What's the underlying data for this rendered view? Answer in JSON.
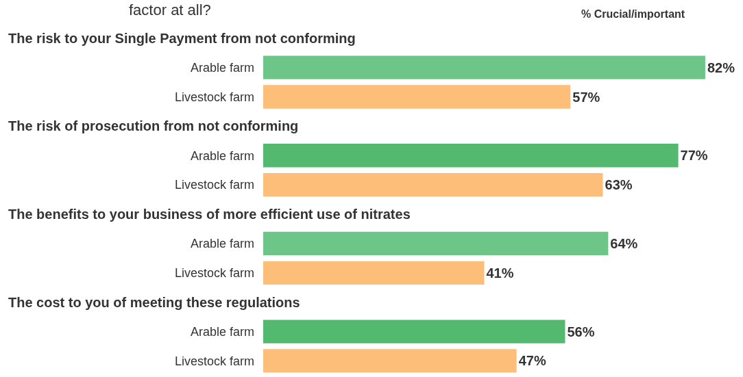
{
  "chart_data": {
    "type": "bar",
    "orientation": "horizontal",
    "title": "factor at all?",
    "subtitle": "% Crucial/important",
    "categories": [
      "Arable farm",
      "Livestock farm",
      "Arable farm",
      "Livestock farm",
      "Arable farm",
      "Livestock farm",
      "Arable farm",
      "Livestock farm"
    ],
    "values": [
      82,
      57,
      77,
      63,
      64,
      41,
      56,
      47
    ],
    "colors": [
      "#6dc687",
      "#fdbe7a",
      "#52b96f",
      "#fdbe7a",
      "#6dc687",
      "#fdbe7a",
      "#52b96f",
      "#fdbe7a"
    ],
    "value_labels": [
      "82%",
      "57%",
      "77%",
      "63%",
      "64%",
      "41%",
      "56%",
      "47%"
    ],
    "annotations": [
      "The risk to your Single Payment from not conforming",
      "The risk of prosecution from not conforming",
      "The benefits to your business of more efficient use of nitrates",
      "The cost to you of meeting these regulations"
    ],
    "xlim": [
      0,
      89
    ]
  }
}
